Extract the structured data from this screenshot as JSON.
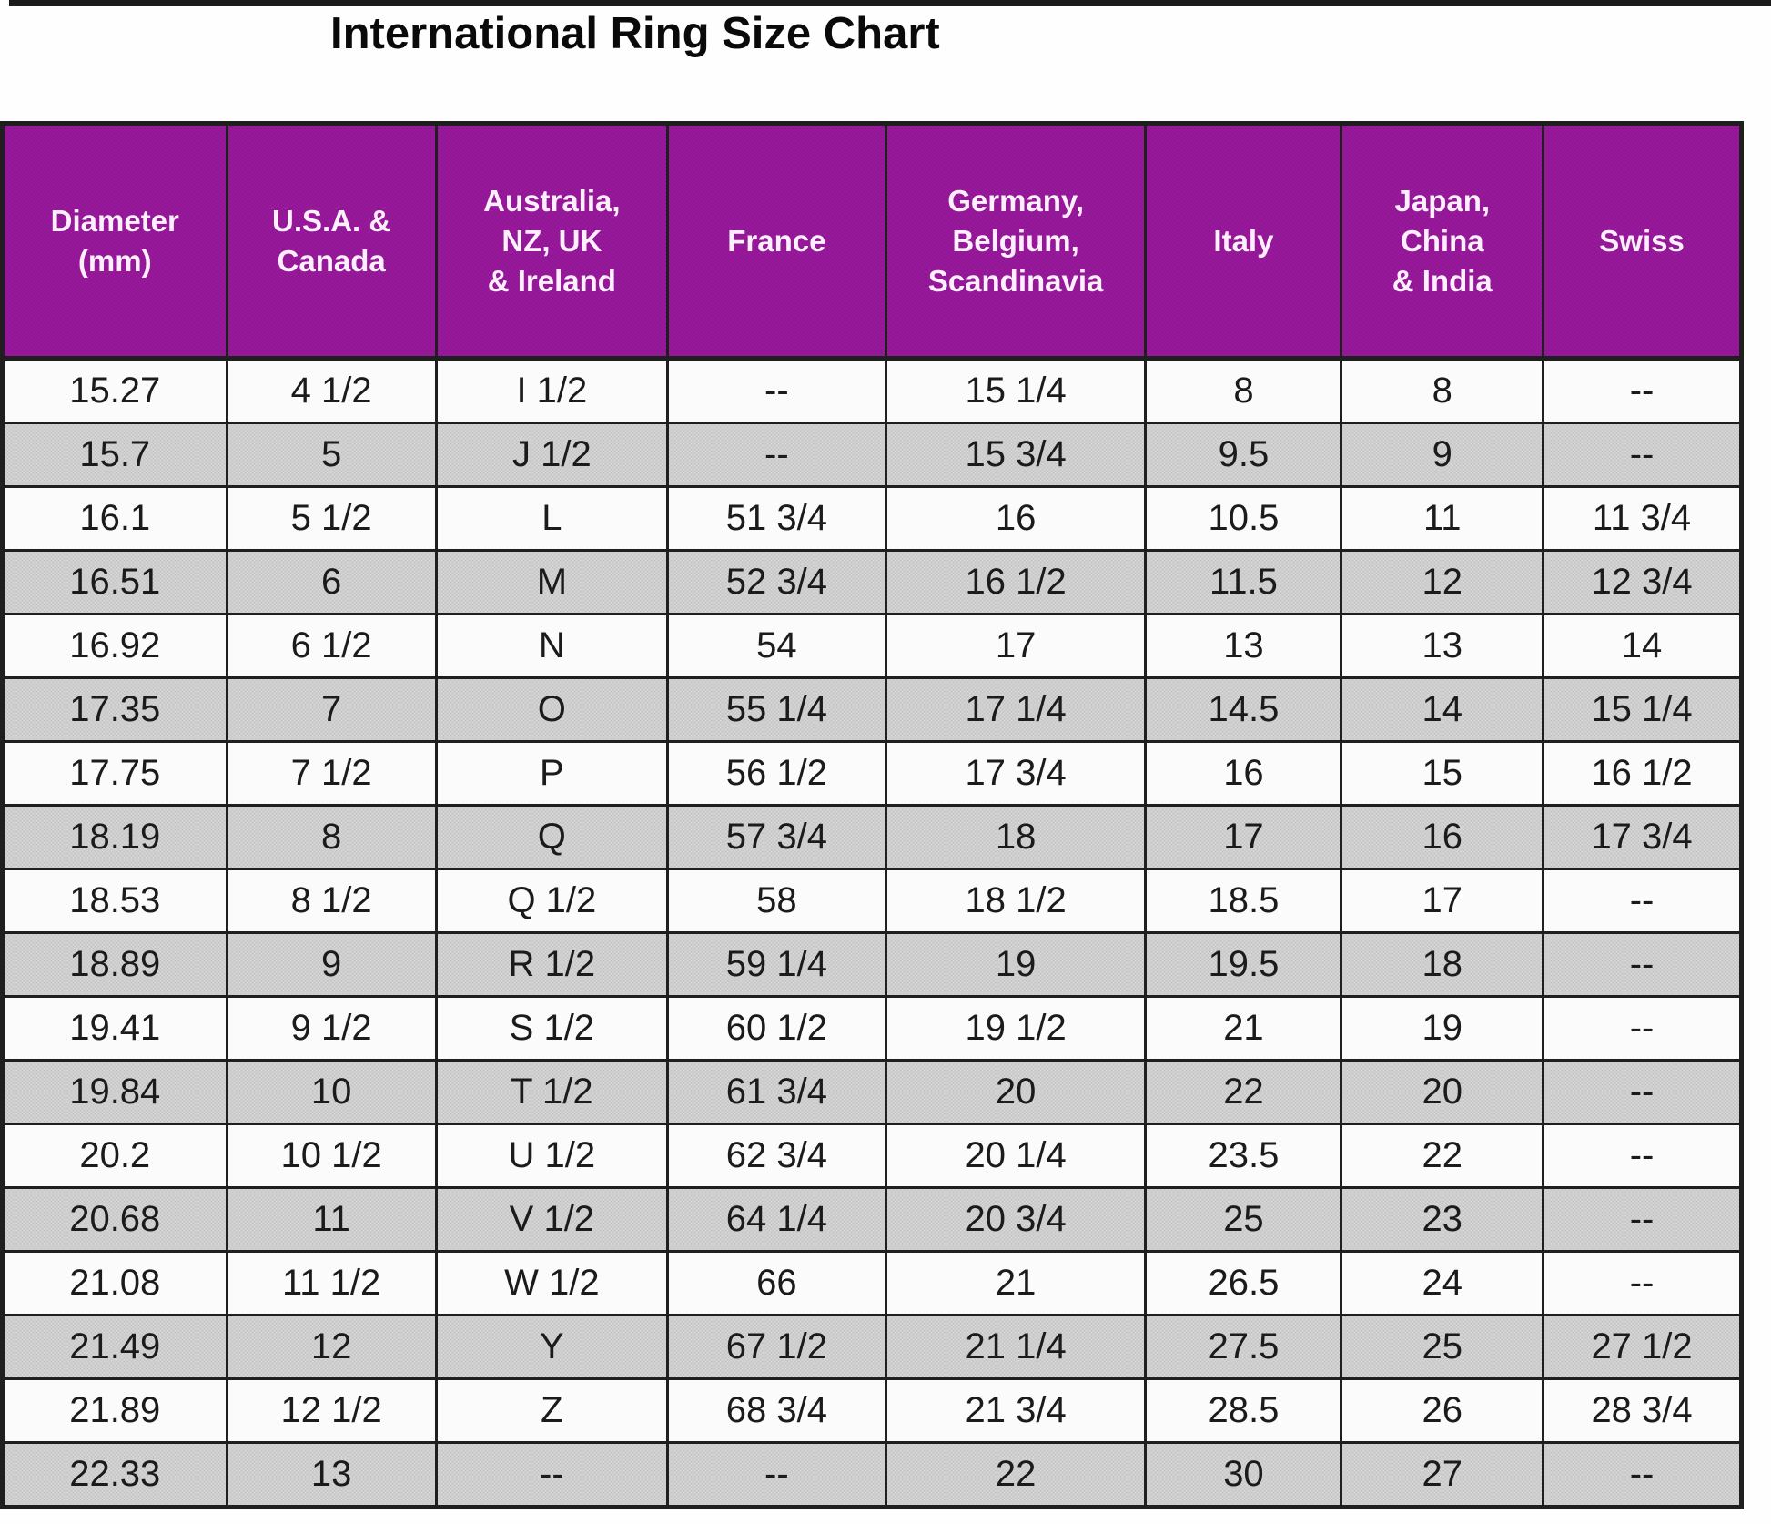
{
  "title": "International Ring Size Chart",
  "colors": {
    "rule_color": "#1a1a1a",
    "title_color": "#0a0a0a",
    "grid": "#1f1f1f",
    "header_bg1": "#8d1290",
    "header_bg2": "#9c1d9e",
    "header_text": "#fdeffd",
    "row_white": "#fbfbfb",
    "row_gray1": "#c6c6c6",
    "row_gray2": "#d7d7d7",
    "cell_text": "#1b1b1b"
  },
  "table": {
    "columns": [
      {
        "key": "diameter-mm",
        "label": "Diameter\n(mm)",
        "width": "12.9%"
      },
      {
        "key": "usa-canada",
        "label": "U.S.A. &\nCanada",
        "width": "12.05%"
      },
      {
        "key": "australia-nz-uk-ireland",
        "label": "Australia,\nNZ, UK\n& Ireland",
        "width": "13.3%"
      },
      {
        "key": "france",
        "label": "France",
        "width": "12.55%"
      },
      {
        "key": "germany-belgium-scandinavia",
        "label": "Germany,\nBelgium,\nScandinavia",
        "width": "14.95%"
      },
      {
        "key": "italy",
        "label": "Italy",
        "width": "11.25%"
      },
      {
        "key": "japan-china-india",
        "label": "Japan,\nChina\n& India",
        "width": "11.6%"
      },
      {
        "key": "swiss",
        "label": "Swiss",
        "width": "11.4%"
      }
    ]
  },
  "chart_data": {
    "type": "table",
    "title": "International Ring Size Chart",
    "columns": [
      "Diameter (mm)",
      "U.S.A. & Canada",
      "Australia, NZ, UK & Ireland",
      "France",
      "Germany, Belgium, Scandinavia",
      "Italy",
      "Japan, China & India",
      "Swiss"
    ],
    "rows": [
      [
        "15.27",
        "4 1/2",
        "I 1/2",
        "--",
        "15 1/4",
        "8",
        "8",
        "--"
      ],
      [
        "15.7",
        "5",
        "J 1/2",
        "--",
        "15 3/4",
        "9.5",
        "9",
        "--"
      ],
      [
        "16.1",
        "5 1/2",
        "L",
        "51 3/4",
        "16",
        "10.5",
        "11",
        "11 3/4"
      ],
      [
        "16.51",
        "6",
        "M",
        "52 3/4",
        "16 1/2",
        "11.5",
        "12",
        "12 3/4"
      ],
      [
        "16.92",
        "6 1/2",
        "N",
        "54",
        "17",
        "13",
        "13",
        "14"
      ],
      [
        "17.35",
        "7",
        "O",
        "55 1/4",
        "17 1/4",
        "14.5",
        "14",
        "15 1/4"
      ],
      [
        "17.75",
        "7 1/2",
        "P",
        "56 1/2",
        "17 3/4",
        "16",
        "15",
        "16 1/2"
      ],
      [
        "18.19",
        "8",
        "Q",
        "57 3/4",
        "18",
        "17",
        "16",
        "17 3/4"
      ],
      [
        "18.53",
        "8 1/2",
        "Q 1/2",
        "58",
        "18 1/2",
        "18.5",
        "17",
        "--"
      ],
      [
        "18.89",
        "9",
        "R 1/2",
        "59 1/4",
        "19",
        "19.5",
        "18",
        "--"
      ],
      [
        "19.41",
        "9 1/2",
        "S 1/2",
        "60 1/2",
        "19 1/2",
        "21",
        "19",
        "--"
      ],
      [
        "19.84",
        "10",
        "T 1/2",
        "61 3/4",
        "20",
        "22",
        "20",
        "--"
      ],
      [
        "20.2",
        "10 1/2",
        "U 1/2",
        "62 3/4",
        "20 1/4",
        "23.5",
        "22",
        "--"
      ],
      [
        "20.68",
        "11",
        "V 1/2",
        "64 1/4",
        "20 3/4",
        "25",
        "23",
        "--"
      ],
      [
        "21.08",
        "11 1/2",
        "W 1/2",
        "66",
        "21",
        "26.5",
        "24",
        "--"
      ],
      [
        "21.49",
        "12",
        "Y",
        "67 1/2",
        "21 1/4",
        "27.5",
        "25",
        "27 1/2"
      ],
      [
        "21.89",
        "12 1/2",
        "Z",
        "68 3/4",
        "21 3/4",
        "28.5",
        "26",
        "28 3/4"
      ],
      [
        "22.33",
        "13",
        "--",
        "--",
        "22",
        "30",
        "27",
        "--"
      ]
    ]
  }
}
